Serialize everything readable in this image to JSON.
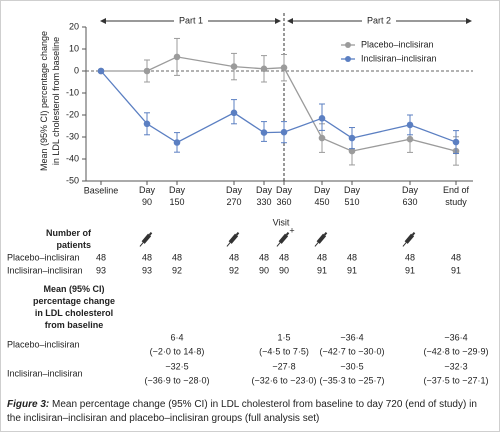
{
  "chart_data": {
    "type": "line",
    "y_label": "Mean (95% CI) percentage change in LDL cholesterol from baseline",
    "x_label": "Visit",
    "categories": [
      "Baseline",
      "Day 90",
      "Day 150",
      "Day 270",
      "Day 330",
      "Day 360",
      "Day 450",
      "Day 510",
      "Day 630",
      "End of study"
    ],
    "series": [
      {
        "name": "Placebo–inclisiran",
        "color": "#9b9b9b",
        "values": [
          0,
          0,
          6.4,
          2,
          1,
          1.5,
          -30.5,
          -36.4,
          -31,
          -36.4
        ],
        "ci_lower": [
          null,
          -5,
          -2.0,
          -4,
          -5,
          -4.5,
          -37,
          -42.7,
          -37,
          -42.8
        ],
        "ci_upper": [
          null,
          5,
          14.8,
          8,
          7,
          7.5,
          -24,
          -30.0,
          -25,
          -29.9
        ]
      },
      {
        "name": "Inclisiran–inclisiran",
        "color": "#5b7fc2",
        "values": [
          0,
          -24,
          -32.5,
          -19,
          -28,
          -27.8,
          -21.5,
          -30.5,
          -24.5,
          -32.3
        ],
        "ci_lower": [
          null,
          -29,
          -36.9,
          -24,
          -32,
          -32.6,
          -27,
          -35.3,
          -29,
          -37.5
        ],
        "ci_upper": [
          null,
          -19,
          -28.0,
          -13,
          -23,
          -23.0,
          -15,
          -25.7,
          -20,
          -27.1
        ]
      }
    ],
    "ylim": [
      -50,
      20
    ],
    "yticks": [
      20,
      10,
      0,
      -10,
      -20,
      -30,
      -40,
      -50
    ],
    "annotations": [
      "Part 1",
      "Part 2"
    ],
    "legend": "upper right"
  },
  "table": {
    "patients_heading": "Number of patients",
    "change_heading": "Mean (95% CI) percentage change in LDL cholesterol from baseline",
    "patients": [
      {
        "name": "Placebo–inclisiran",
        "values": [
          48,
          48,
          48,
          48,
          48,
          48,
          48,
          48,
          48,
          48
        ]
      },
      {
        "name": "Inclisiran–inclisiran",
        "values": [
          93,
          93,
          92,
          92,
          90,
          90,
          91,
          91,
          91,
          91
        ]
      }
    ],
    "change": [
      {
        "name": "Placebo–inclisiran",
        "values": [
          "6·4",
          "1·5",
          "−36·4",
          "−36·4"
        ],
        "ci": [
          "(−2·0 to 14·8)",
          "(−4·5 to 7·5)",
          "(−42·7 to −30·0)",
          "(−42·8 to −29·9)"
        ]
      },
      {
        "name": "Inclisiran–inclisiran",
        "values": [
          "−32·5",
          "−27·8",
          "−30·5",
          "−32·3"
        ],
        "ci": [
          "(−36·9 to −28·0)",
          "(−32·6 to −23·0)",
          "(−35·3 to −25·7)",
          "(−37·5 to −27·1)"
        ]
      }
    ]
  },
  "caption": {
    "label": "Figure 3:",
    "text": "Mean percentage change (95% CI) in LDL cholesterol from baseline to day 720 (end of study) in the inclisiran–inclisiran and placebo–inclisiran groups (full analysis set)"
  }
}
